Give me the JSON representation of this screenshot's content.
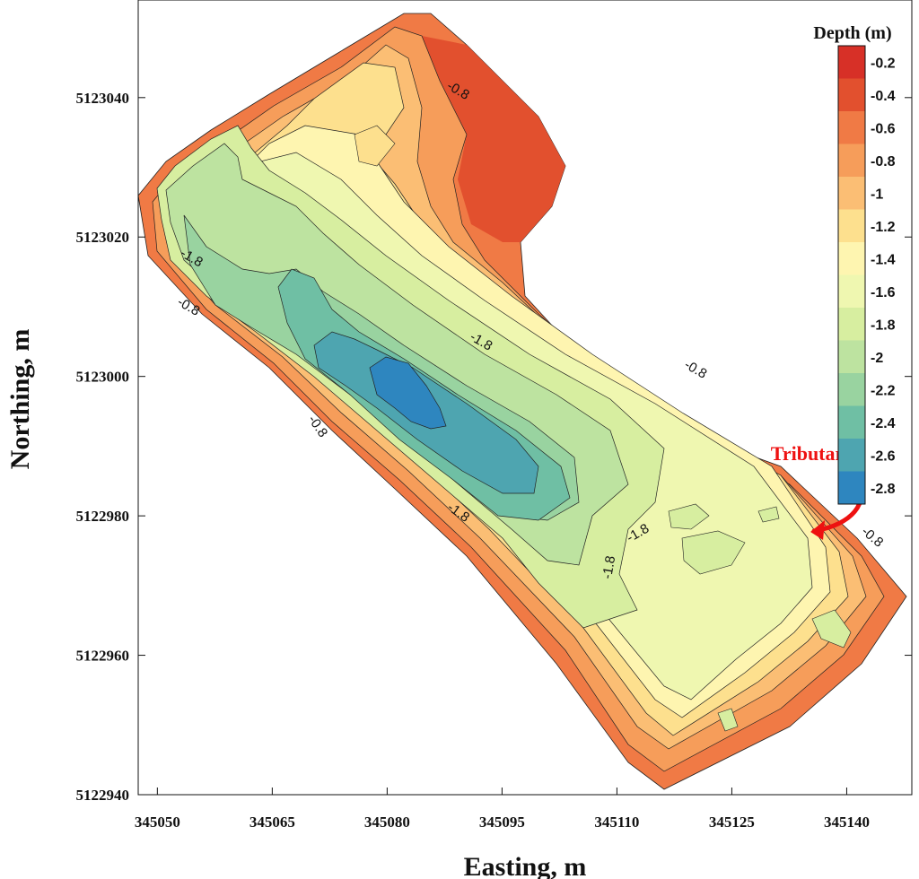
{
  "chart_data": {
    "type": "contour",
    "xlabel": "Easting, m",
    "ylabel": "Northing, m",
    "xlim": [
      345047.5,
      345148.5
    ],
    "ylim": [
      5122940,
      5123054
    ],
    "xticks": [
      "345050",
      "345065",
      "345080",
      "345095",
      "345110",
      "345125",
      "345140"
    ],
    "xtick_values": [
      345050,
      345065,
      345080,
      345095,
      345110,
      345125,
      345140
    ],
    "yticks": [
      "5122940",
      "5122960",
      "5122980",
      "5123000",
      "5123020",
      "5123040"
    ],
    "ytick_values": [
      5122940,
      5122960,
      5122980,
      5123000,
      5123020,
      5123040
    ],
    "legend": {
      "title": "Depth (m)",
      "placement": "top-right",
      "levels": [
        "-0.2",
        "-0.4",
        "-0.6",
        "-0.8",
        "-1",
        "-1.2",
        "-1.4",
        "-1.6",
        "-1.8",
        "-2",
        "-2.2",
        "-2.4",
        "-2.6",
        "-2.8"
      ],
      "colors": [
        "#d73027",
        "#e2502e",
        "#f07a45",
        "#f69d5a",
        "#fbbe74",
        "#fde08e",
        "#fef5b0",
        "#eff7b0",
        "#d7eea0",
        "#bde3a0",
        "#99d3a0",
        "#6fbfa4",
        "#4ea5b0",
        "#2e86bf"
      ]
    },
    "contour_labels": [
      {
        "text": "-0.8",
        "x": 345089.0,
        "y": 5123040.5,
        "angle": 30
      },
      {
        "text": "-1.8",
        "x": 345054.2,
        "y": 5123016.5,
        "angle": 30
      },
      {
        "text": "-0.8",
        "x": 345053.8,
        "y": 5123009.5,
        "angle": 30
      },
      {
        "text": "-1.8",
        "x": 345092.0,
        "y": 5123004.5,
        "angle": 30
      },
      {
        "text": "-0.8",
        "x": 345120.0,
        "y": 5123000.5,
        "angle": 30
      },
      {
        "text": "-0.8",
        "x": 345070.5,
        "y": 5122992.5,
        "angle": 55
      },
      {
        "text": "-1.8",
        "x": 345089.0,
        "y": 5122980.0,
        "angle": 35
      },
      {
        "text": "-1.8",
        "x": 345113.0,
        "y": 5122977.0,
        "angle": -30
      },
      {
        "text": "-1.8",
        "x": 345109.5,
        "y": 5122972.5,
        "angle": -80
      },
      {
        "text": "-0.8",
        "x": 345143.0,
        "y": 5122976.5,
        "angle": 40
      }
    ],
    "annotations": [
      {
        "text": "Tributary",
        "x": 345135.5,
        "y": 5122988.0
      }
    ]
  }
}
